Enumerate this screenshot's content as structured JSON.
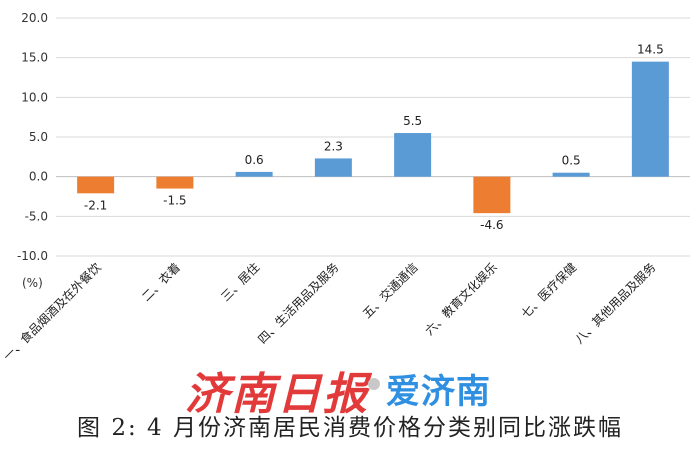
{
  "chart_data": {
    "type": "bar",
    "categories": [
      "一、食品烟酒及在外餐饮",
      "二、衣着",
      "三、居住",
      "四、生活用品及服务",
      "五、交通通信",
      "六、教育文化娱乐",
      "七、医疗保健",
      "八、其他用品及服务"
    ],
    "values": [
      -2.1,
      -1.5,
      0.6,
      2.3,
      5.5,
      -4.6,
      0.5,
      14.5
    ],
    "value_labels": [
      "-2.1",
      "-1.5",
      "0.6",
      "2.3",
      "5.5",
      "-4.6",
      "0.5",
      "14.5"
    ],
    "yticks": [
      "20.0",
      "15.0",
      "10.0",
      "5.0",
      "0.0",
      "-5.0",
      "-10.0"
    ],
    "ylim": [
      -10,
      20
    ],
    "ylabel": "(%)",
    "xlabel": "",
    "grid": true,
    "colors": {
      "positive": "#5b9bd5",
      "negative": "#ed7d31",
      "grid": "#d9d9d9",
      "axis": "#bfbfbf"
    }
  },
  "watermark": {
    "newspaper": "济南日报",
    "app": "爱济南"
  },
  "caption": "图 2: 4 月份济南居民消费价格分类别同比涨跌幅"
}
